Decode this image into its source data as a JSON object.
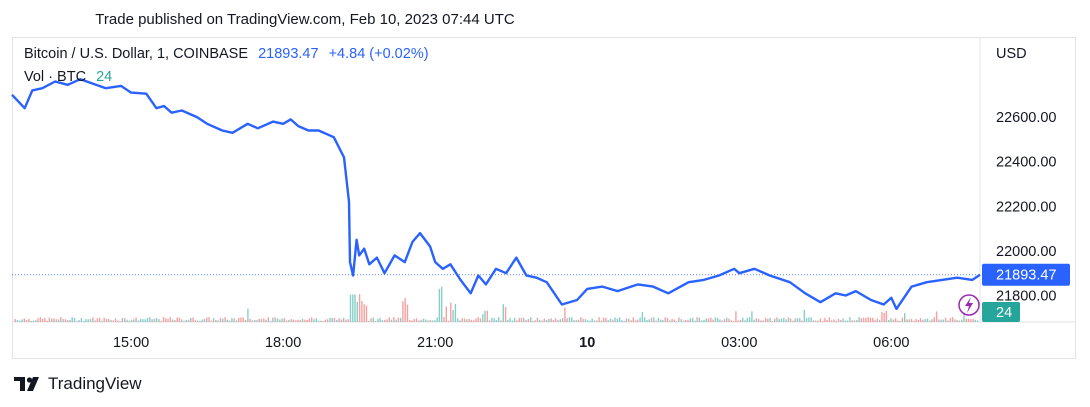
{
  "header": {
    "text": "Trade published on TradingView.com, Feb 10, 2023 07:44 UTC"
  },
  "legend": {
    "symbol": "Bitcoin / U.S. Dollar, 1, COINBASE",
    "last": "21893.47",
    "change": "+4.84 (+0.02%)",
    "vol_label": "Vol · BTC",
    "vol_value": "24"
  },
  "footer": {
    "brand": "TradingView"
  },
  "colors": {
    "line": "#2962ff",
    "vol_up": "#26a69a",
    "vol_down": "#ef5350",
    "price_label_bg": "#2962ff",
    "vol_label_bg": "#26a69a"
  },
  "chart_data": {
    "type": "line",
    "y_axis_title": "USD",
    "y_ticks": [
      "22600.00",
      "22400.00",
      "22200.00",
      "22000.00",
      "21800.00"
    ],
    "ylim": [
      21650,
      22780
    ],
    "x_ticks": [
      "15:00",
      "18:00",
      "21:00",
      "10",
      "03:00",
      "06:00"
    ],
    "x_tick_hours": [
      15,
      18,
      21,
      24,
      27,
      30
    ],
    "xlim_hours": [
      12.65,
      31.75
    ],
    "current_price_label": "21893.47",
    "current_volume_label": "24",
    "series": [
      {
        "x_hours": [
          12.65,
          12.9,
          13.05,
          13.25,
          13.5,
          13.75,
          14.0,
          14.25,
          14.5,
          14.8,
          15.0,
          15.3,
          15.5,
          15.65,
          15.8,
          16.0,
          16.3,
          16.5,
          16.8,
          17.0,
          17.3,
          17.5,
          17.8,
          18.0,
          18.15,
          18.3,
          18.5,
          18.7,
          19.0,
          19.2,
          19.3,
          19.32,
          19.38,
          19.45,
          19.5,
          19.6,
          19.7,
          19.85,
          20.0,
          20.2,
          20.4,
          20.55,
          20.7,
          20.9,
          21.0,
          21.15,
          21.3,
          21.5,
          21.7,
          21.85,
          22.0,
          22.2,
          22.4,
          22.6,
          22.8,
          23.0,
          23.2,
          23.5,
          23.8,
          24.0,
          24.3,
          24.6,
          25.0,
          25.3,
          25.6,
          26.0,
          26.3,
          26.6,
          26.9,
          27.0,
          27.3,
          27.6,
          28.0,
          28.3,
          28.6,
          28.9,
          29.1,
          29.3,
          29.6,
          29.85,
          30.0,
          30.1,
          30.4,
          30.7,
          31.0,
          31.3,
          31.6,
          31.75
        ],
        "y": [
          22700,
          22640,
          22720,
          22730,
          22760,
          22745,
          22770,
          22750,
          22730,
          22740,
          22710,
          22705,
          22640,
          22650,
          22620,
          22630,
          22600,
          22570,
          22540,
          22530,
          22570,
          22550,
          22580,
          22570,
          22590,
          22560,
          22540,
          22540,
          22510,
          22420,
          22220,
          21950,
          21890,
          22050,
          21980,
          22010,
          21940,
          21970,
          21900,
          21980,
          21950,
          22040,
          22080,
          22020,
          21950,
          21920,
          21940,
          21870,
          21810,
          21890,
          21850,
          21920,
          21900,
          21970,
          21890,
          21880,
          21860,
          21760,
          21780,
          21830,
          21840,
          21820,
          21850,
          21840,
          21810,
          21860,
          21870,
          21890,
          21920,
          21900,
          21920,
          21890,
          21860,
          21810,
          21770,
          21810,
          21800,
          21820,
          21780,
          21760,
          21790,
          21740,
          21840,
          21860,
          21870,
          21880,
          21870,
          21893.47
        ]
      }
    ]
  }
}
